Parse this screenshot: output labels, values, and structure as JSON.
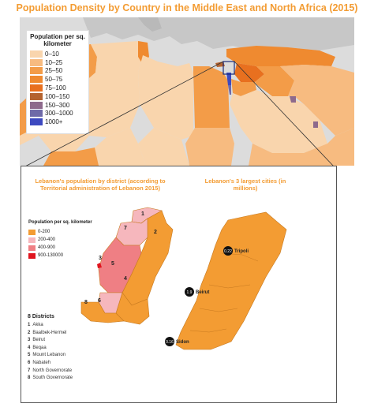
{
  "title": "Population Density by Country in the Middle East and North Africa (2015)",
  "legend_top": {
    "title": "Population per sq. kilometer",
    "items": [
      {
        "label": "0–10",
        "color": "#f9d5ad"
      },
      {
        "label": "10–25",
        "color": "#f7bb80"
      },
      {
        "label": "25–50",
        "color": "#f39c48"
      },
      {
        "label": "50–75",
        "color": "#ef8a30"
      },
      {
        "label": "75–100",
        "color": "#e8701f"
      },
      {
        "label": "100–150",
        "color": "#b4632f"
      },
      {
        "label": "150–300",
        "color": "#8e6a8c"
      },
      {
        "label": "300–1000",
        "color": "#6f6aa8"
      },
      {
        "label": "1000+",
        "color": "#3d49c0"
      }
    ]
  },
  "inset": {
    "left_title": "Lebanon's population by district (according to Territorial administration of Lebanon 2015)",
    "right_title": "Lebanon's 3 largest cities (in millions)",
    "legend": {
      "title": "Population per sq. kilometer",
      "items": [
        {
          "label": "0-200",
          "color": "#f39c33"
        },
        {
          "label": "200-400",
          "color": "#f6b7bd"
        },
        {
          "label": "400-900",
          "color": "#ef7f84"
        },
        {
          "label": "900-130000",
          "color": "#e0141e"
        }
      ]
    },
    "districts_title": "8 Districts",
    "districts": [
      {
        "num": "1",
        "name": "Akka"
      },
      {
        "num": "2",
        "name": "Baalbek-Hermel"
      },
      {
        "num": "3",
        "name": "Beirut"
      },
      {
        "num": "4",
        "name": "Beqaa"
      },
      {
        "num": "5",
        "name": "Mount Lebanon"
      },
      {
        "num": "6",
        "name": "Nabateh"
      },
      {
        "num": "7",
        "name": "North Governorate"
      },
      {
        "num": "8",
        "name": "South Governorate"
      }
    ],
    "district_markers": [
      "1",
      "2",
      "3",
      "4",
      "5",
      "6",
      "7",
      "8"
    ],
    "cities": [
      {
        "value": "0.22",
        "name": "Tripoli"
      },
      {
        "value": "1.9",
        "name": "Beirut"
      },
      {
        "value": "0.16",
        "name": "Sidon"
      }
    ]
  }
}
